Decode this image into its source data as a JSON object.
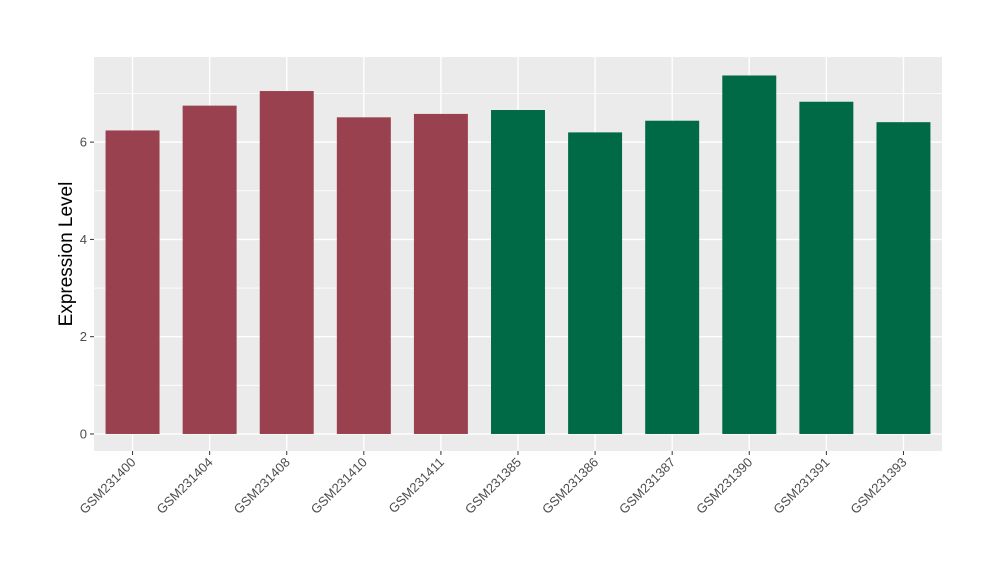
{
  "chart_data": {
    "type": "bar",
    "title": "",
    "xlabel": "",
    "ylabel": "Expression Level",
    "categories": [
      "GSM231400",
      "GSM231404",
      "GSM231408",
      "GSM231410",
      "GSM231411",
      "GSM231385",
      "GSM231386",
      "GSM231387",
      "GSM231390",
      "GSM231391",
      "GSM231393"
    ],
    "values": [
      6.24,
      6.75,
      7.05,
      6.51,
      6.58,
      6.66,
      6.2,
      6.44,
      7.37,
      6.83,
      6.41
    ],
    "group_index": [
      0,
      0,
      0,
      0,
      0,
      1,
      1,
      1,
      1,
      1,
      1
    ],
    "group_colors": [
      "#99414E",
      "#006946"
    ],
    "ylim": [
      -0.35,
      7.75
    ],
    "yticks": [
      0,
      2,
      4,
      6
    ],
    "grid": true,
    "panel_background": "#EBEBEB",
    "grid_color": "#FFFFFF"
  }
}
